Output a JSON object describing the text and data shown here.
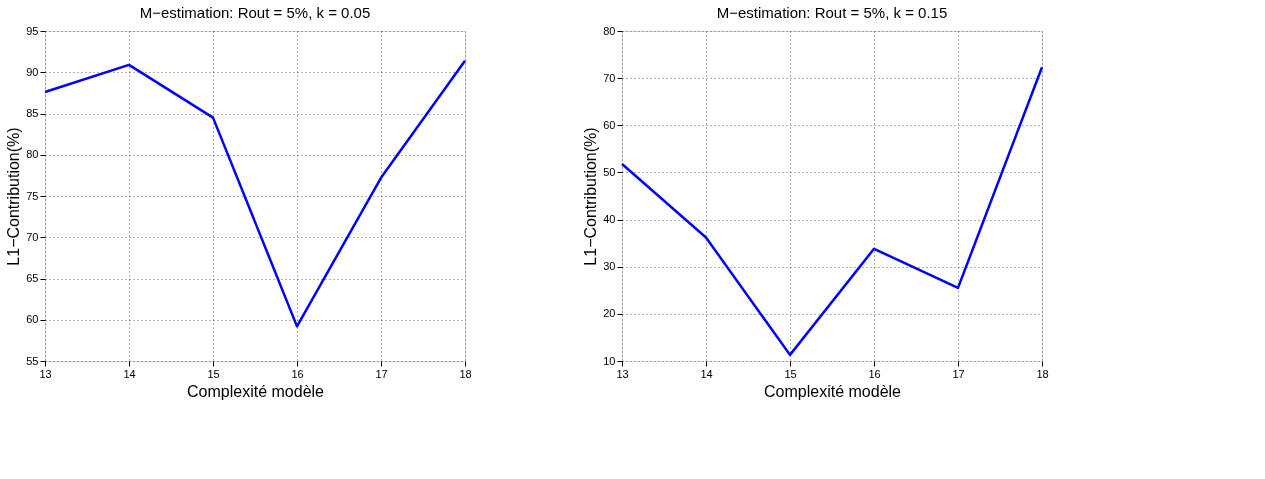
{
  "chart_data": [
    {
      "type": "line",
      "title": "M−estimation: Rout = 5%, k = 0.05",
      "xlabel": "Complexité modèle",
      "ylabel": "L1−Contribution(%)",
      "x": [
        13,
        14,
        15,
        16,
        17,
        18
      ],
      "series": [
        {
          "color": "#0000ff",
          "values": [
            87.6,
            90.9,
            84.5,
            59.2,
            77.2,
            91.4
          ]
        }
      ],
      "xlim": [
        13,
        18
      ],
      "xticks": [
        13,
        14,
        15,
        16,
        17,
        18
      ],
      "ylim": [
        55,
        95
      ],
      "yticks": [
        55,
        60,
        65,
        70,
        75,
        80,
        85,
        90,
        95
      ],
      "grid": true,
      "line_style": "solid",
      "marker": "none"
    },
    {
      "type": "line",
      "title": "M−estimation: Rout = 5%, k = 0.15",
      "xlabel": "Complexité modèle",
      "ylabel": "L1−Contribution(%)",
      "x": [
        13,
        14,
        15,
        16,
        17,
        18
      ],
      "series": [
        {
          "color": "#0000ff",
          "values": [
            51.8,
            36.2,
            11.3,
            33.8,
            25.5,
            72.3
          ]
        }
      ],
      "xlim": [
        13,
        18
      ],
      "xticks": [
        13,
        14,
        15,
        16,
        17,
        18
      ],
      "ylim": [
        10,
        80
      ],
      "yticks": [
        10,
        20,
        30,
        40,
        50,
        60,
        70,
        80
      ],
      "grid": true,
      "line_style": "solid",
      "marker": "none"
    }
  ]
}
